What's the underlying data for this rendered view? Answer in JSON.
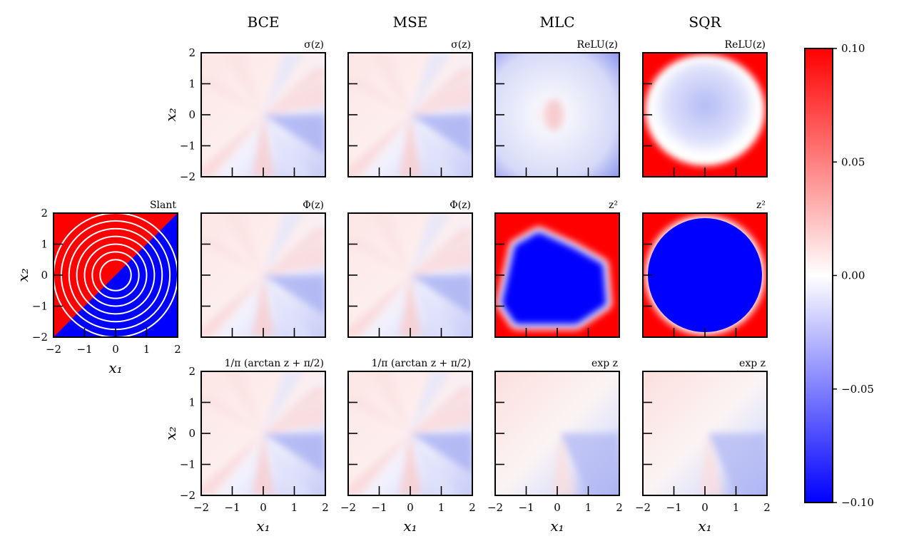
{
  "chart_data": {
    "type": "heatmap",
    "columns": [
      "BCE",
      "MSE",
      "MLC",
      "SQR"
    ],
    "rows": [
      {
        "subtitles": [
          "σ(z)",
          "σ(z)",
          "ReLU(z)",
          "ReLU(z)"
        ]
      },
      {
        "subtitles": [
          "Φ(z)",
          "Φ(z)",
          "z²",
          "z²"
        ]
      },
      {
        "subtitles": [
          "1/π (arctan z + π/2)",
          "1/π (arctan z + π/2)",
          "exp z",
          "exp z"
        ]
      }
    ],
    "reference_panel": {
      "subtitle": "Slant",
      "regions": {
        "upper_left": "red",
        "lower_right": "blue"
      },
      "boundary": "x2 = x1",
      "circle_radii": [
        0.5,
        0.75,
        1.0,
        1.25,
        1.5,
        1.75,
        2.0
      ]
    },
    "xlabel": "x₁",
    "ylabel": "x₂",
    "xlim": [
      -2,
      2
    ],
    "ylim": [
      -2,
      2
    ],
    "xticks": [
      "−2",
      "−1",
      "0",
      "1",
      "2"
    ],
    "yticks": [
      "2",
      "1",
      "0",
      "−1",
      "−2"
    ],
    "colorbar": {
      "range": [
        -0.1,
        0.1
      ],
      "ticks": [
        "0.10",
        "0.05",
        "0.00",
        "−0.05",
        "−0.10"
      ],
      "colormap": "bwr",
      "colors": {
        "low": "#0000ff",
        "mid": "#ffffff",
        "high": "#ff0000"
      }
    }
  }
}
